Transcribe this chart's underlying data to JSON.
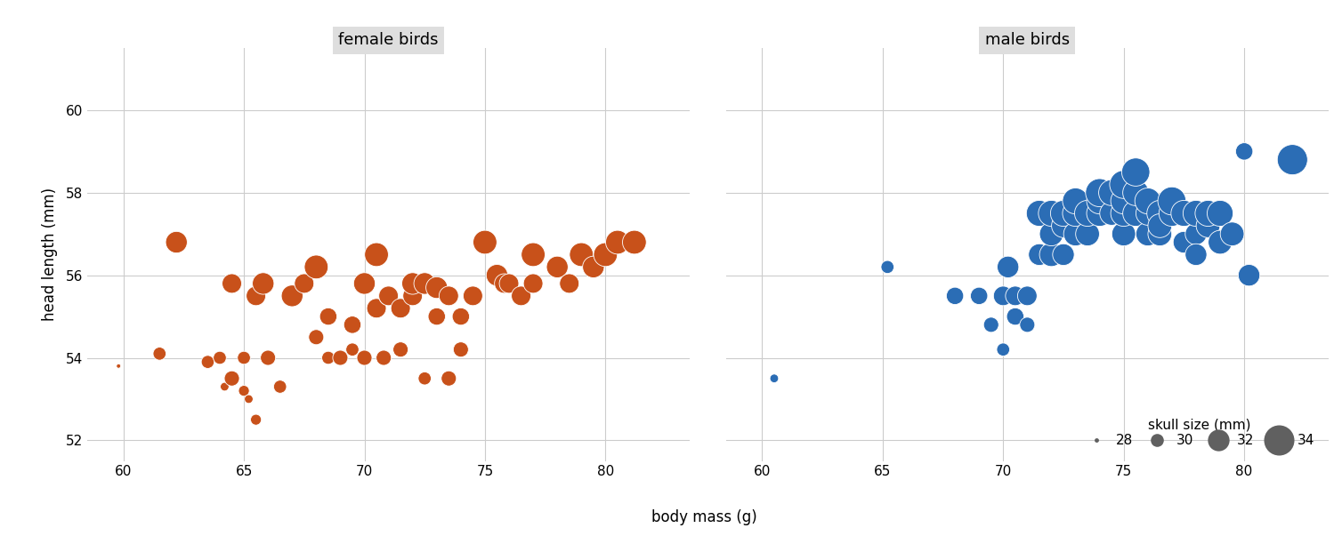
{
  "female_body_mass": [
    59.8,
    61.5,
    62.2,
    63.5,
    64.0,
    64.2,
    64.5,
    64.5,
    65.0,
    65.0,
    65.2,
    65.5,
    65.5,
    65.8,
    66.0,
    66.5,
    67.0,
    67.5,
    68.0,
    68.0,
    68.5,
    68.5,
    69.0,
    69.5,
    69.5,
    70.0,
    70.0,
    70.5,
    70.5,
    70.8,
    71.0,
    71.0,
    71.5,
    71.5,
    72.0,
    72.0,
    72.5,
    72.5,
    73.0,
    73.0,
    73.5,
    73.5,
    74.0,
    74.0,
    74.5,
    75.0,
    75.5,
    75.8,
    76.0,
    76.5,
    77.0,
    77.0,
    78.0,
    78.5,
    79.0,
    79.5,
    80.0,
    80.5,
    81.2
  ],
  "female_head_length": [
    53.8,
    54.1,
    56.8,
    53.9,
    54.0,
    53.3,
    53.5,
    55.8,
    53.2,
    54.0,
    53.0,
    55.5,
    52.5,
    55.8,
    54.0,
    53.3,
    55.5,
    55.8,
    56.2,
    54.5,
    55.0,
    54.0,
    54.0,
    54.2,
    54.8,
    54.0,
    55.8,
    55.2,
    56.5,
    54.0,
    55.5,
    55.5,
    54.2,
    55.2,
    55.5,
    55.8,
    55.8,
    53.5,
    55.7,
    55.0,
    53.5,
    55.5,
    55.0,
    54.2,
    55.5,
    56.8,
    56.0,
    55.8,
    55.8,
    55.5,
    55.8,
    56.5,
    56.2,
    55.8,
    56.5,
    56.2,
    56.5,
    56.8,
    56.8
  ],
  "female_skull_size": [
    28.0,
    30.0,
    32.0,
    30.0,
    30.0,
    29.0,
    30.5,
    31.5,
    29.5,
    30.0,
    29.0,
    31.5,
    29.5,
    32.0,
    30.5,
    30.0,
    32.0,
    31.5,
    32.5,
    30.5,
    31.0,
    30.0,
    30.5,
    30.0,
    31.0,
    30.5,
    32.0,
    31.5,
    32.5,
    30.5,
    31.5,
    31.5,
    30.5,
    31.5,
    31.5,
    32.0,
    32.0,
    30.0,
    32.0,
    31.0,
    30.5,
    31.5,
    31.0,
    30.5,
    31.5,
    32.5,
    32.0,
    31.5,
    31.5,
    31.5,
    31.5,
    32.5,
    32.0,
    31.5,
    32.5,
    32.0,
    32.5,
    32.5,
    32.5
  ],
  "male_body_mass": [
    60.5,
    65.2,
    68.0,
    69.0,
    69.5,
    70.0,
    70.0,
    70.2,
    70.5,
    70.5,
    71.0,
    71.0,
    71.5,
    71.5,
    72.0,
    72.0,
    72.0,
    72.5,
    72.5,
    72.5,
    73.0,
    73.0,
    73.0,
    73.5,
    73.5,
    74.0,
    74.0,
    74.0,
    74.5,
    74.5,
    75.0,
    75.0,
    75.0,
    75.0,
    75.5,
    75.5,
    75.5,
    76.0,
    76.0,
    76.0,
    76.5,
    76.5,
    76.5,
    77.0,
    77.0,
    77.5,
    77.5,
    78.0,
    78.0,
    78.0,
    78.5,
    78.5,
    79.0,
    79.0,
    79.5,
    80.0,
    80.2,
    82.0
  ],
  "male_head_length": [
    53.5,
    56.2,
    55.5,
    55.5,
    54.8,
    55.5,
    54.2,
    56.2,
    55.0,
    55.5,
    54.8,
    55.5,
    57.5,
    56.5,
    56.5,
    57.0,
    57.5,
    56.5,
    57.2,
    57.5,
    57.0,
    57.5,
    57.8,
    57.0,
    57.5,
    57.5,
    57.8,
    58.0,
    57.5,
    58.0,
    57.0,
    57.5,
    57.8,
    58.2,
    57.5,
    58.0,
    58.5,
    57.0,
    57.5,
    57.8,
    57.0,
    57.5,
    57.2,
    57.5,
    57.8,
    56.8,
    57.5,
    57.0,
    57.5,
    56.5,
    57.2,
    57.5,
    56.8,
    57.5,
    57.0,
    59.0,
    56.0,
    58.8
  ],
  "male_skull_size": [
    29.0,
    30.0,
    31.0,
    31.0,
    30.5,
    31.5,
    30.0,
    32.0,
    31.0,
    31.5,
    30.5,
    31.5,
    33.0,
    32.0,
    32.5,
    32.5,
    33.0,
    32.0,
    32.5,
    33.0,
    32.5,
    33.0,
    33.0,
    32.5,
    33.0,
    33.0,
    33.0,
    33.5,
    32.5,
    33.0,
    32.5,
    33.0,
    33.0,
    33.5,
    33.0,
    33.0,
    33.5,
    32.5,
    32.5,
    33.0,
    32.5,
    33.0,
    32.5,
    33.0,
    33.5,
    32.0,
    33.0,
    32.0,
    33.0,
    32.0,
    32.5,
    33.0,
    32.5,
    33.0,
    32.5,
    31.0,
    32.0,
    34.0
  ],
  "female_color": "#C8511A",
  "male_color": "#2B6DB5",
  "legend_dot_color": "#606060",
  "panel_bg": "#FFFFFF",
  "strip_bg": "#DEDEDE",
  "grid_color": "#CCCCCC",
  "female_xlim": [
    58.5,
    83.5
  ],
  "male_xlim": [
    58.5,
    83.5
  ],
  "ylim": [
    51.5,
    61.5
  ],
  "yticks": [
    52,
    54,
    56,
    58,
    60
  ],
  "female_xticks": [
    60,
    65,
    70,
    75,
    80
  ],
  "male_xticks": [
    60,
    65,
    70,
    75,
    80
  ],
  "xlabel": "body mass (g)",
  "ylabel": "head length (mm)",
  "title_female": "female birds",
  "title_male": "male birds",
  "legend_sizes": [
    28,
    30,
    32,
    34
  ],
  "legend_title": "skull size (mm)",
  "size_min": 28,
  "size_factor": 3.5
}
